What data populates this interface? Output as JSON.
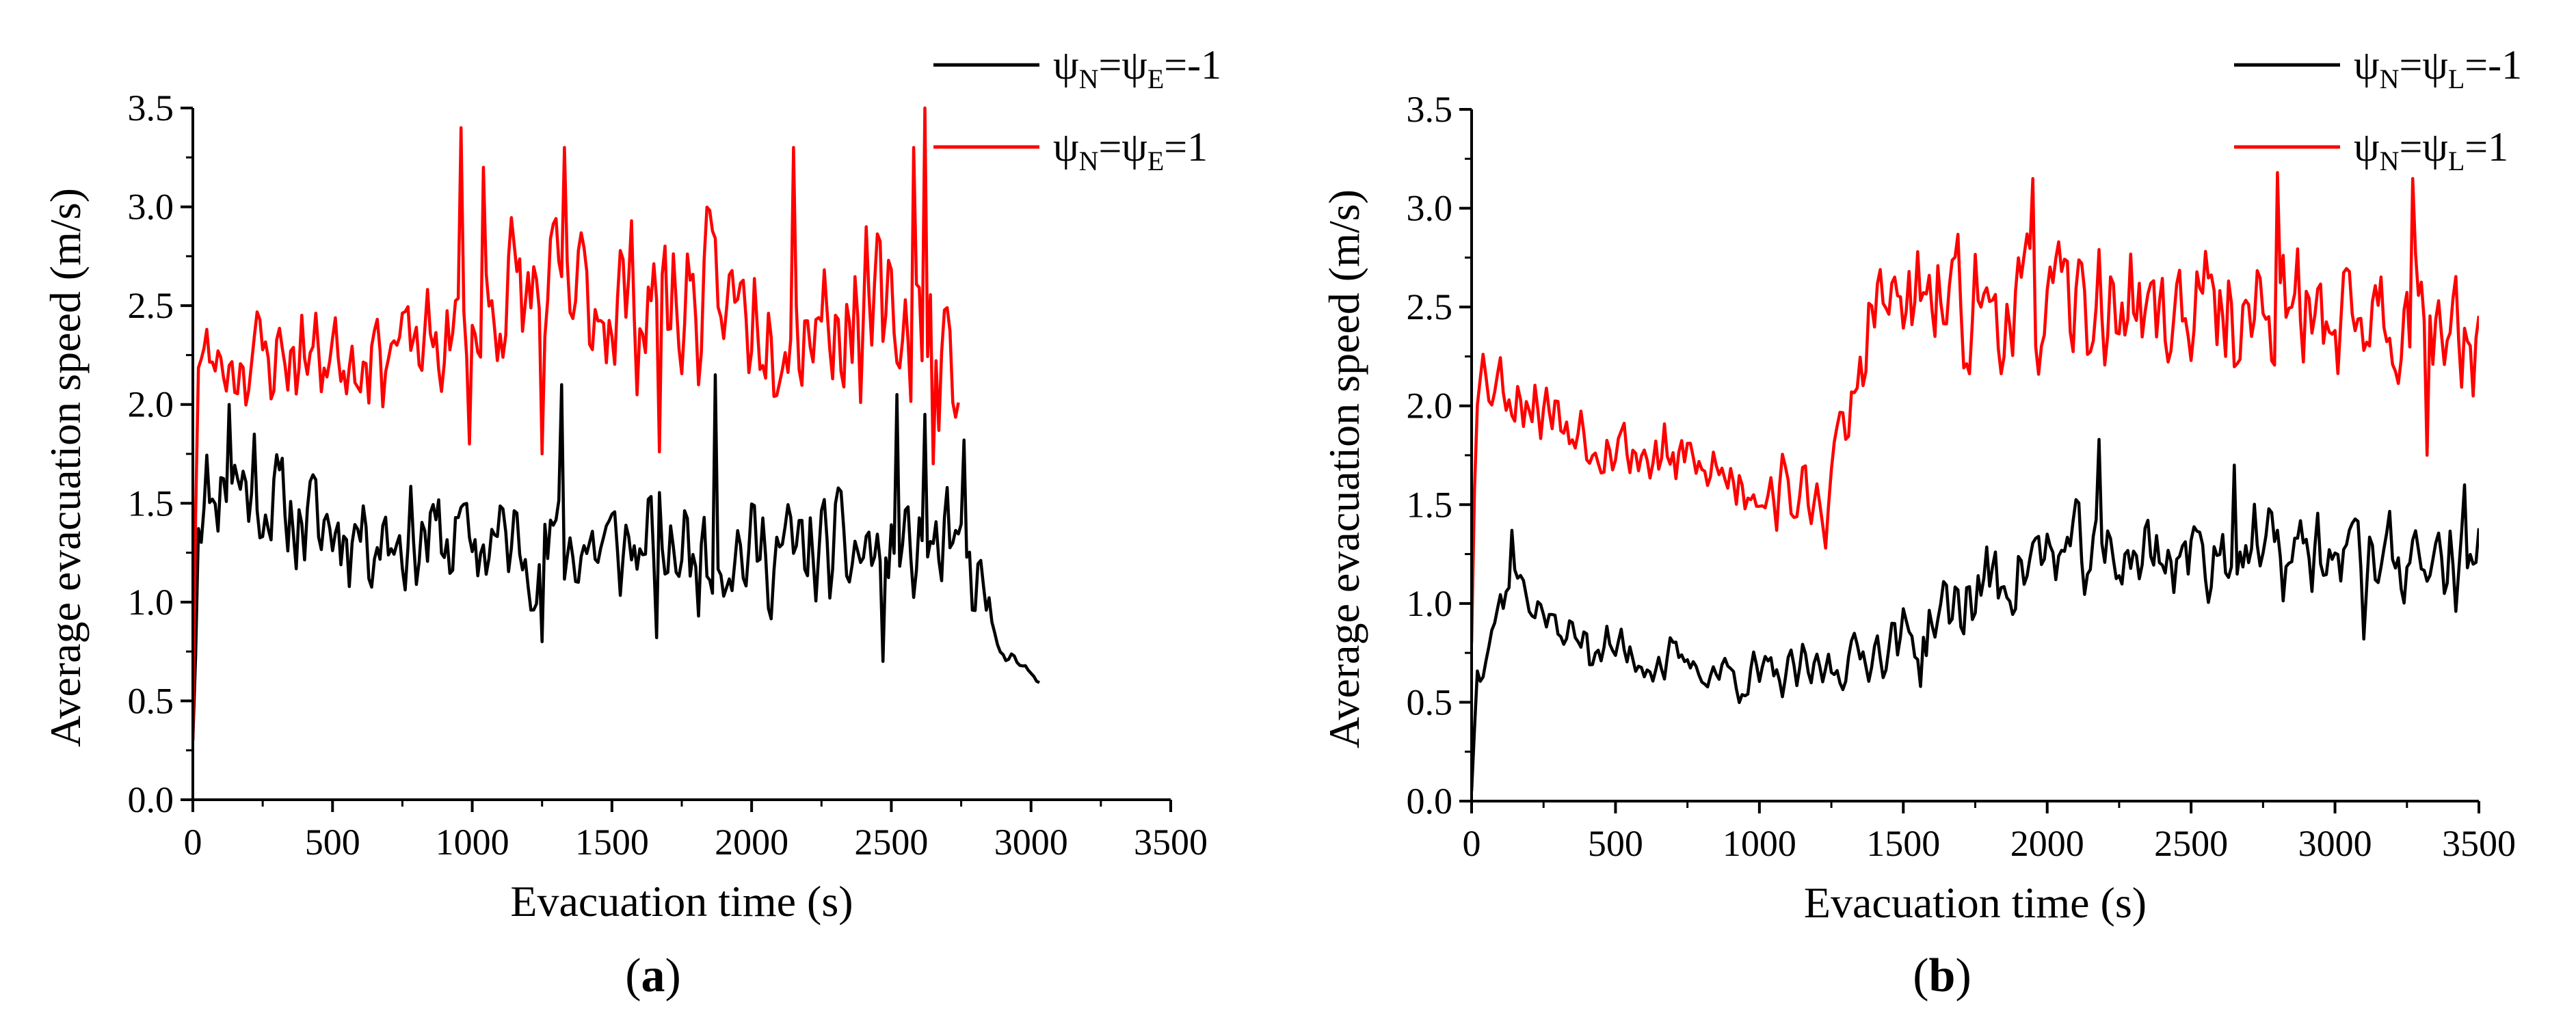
{
  "chart_data": [
    {
      "panel_label_prefix": "(",
      "panel_letter": "a",
      "panel_label_suffix": ")",
      "type": "line",
      "title": "",
      "xlabel": "Evacuation time (s)",
      "ylabel": "Average evacuation speed (m/s)",
      "xlim": [
        0,
        3500
      ],
      "ylim": [
        0.0,
        3.5
      ],
      "xticks": [
        "0",
        "500",
        "1000",
        "1500",
        "2000",
        "2500",
        "3000",
        "3500"
      ],
      "yticks": [
        "0.0",
        "0.5",
        "1.0",
        "1.5",
        "2.0",
        "2.5",
        "3.0",
        "3.5"
      ],
      "legend_position": "top-right, outside plot",
      "series": [
        {
          "name": "ψN=ψE=-1",
          "legend": {
            "psi": "ψ",
            "sub1": "N",
            "eq1": "=",
            "sub2": "E",
            "val": "=-1"
          },
          "color": "#000000",
          "seed": 11,
          "shape": [
            [
              0,
              0.3
            ],
            [
              20,
              1.5
            ],
            [
              130,
              1.65
            ],
            [
              400,
              1.4
            ],
            [
              1000,
              1.3
            ],
            [
              2000,
              1.25
            ],
            [
              2700,
              1.25
            ],
            [
              2850,
              1.0
            ],
            [
              2880,
              0.75
            ],
            [
              2950,
              0.68
            ],
            [
              3030,
              0.62
            ]
          ],
          "noise": [
            [
              0,
              0.22
            ],
            [
              2800,
              0.22
            ],
            [
              2880,
              0.03
            ],
            [
              3030,
              0.02
            ]
          ],
          "spikes": [
            [
              130,
              2.0
            ],
            [
              220,
              1.85
            ],
            [
              1320,
              2.1
            ],
            [
              1870,
              2.15
            ],
            [
              2520,
              2.05
            ],
            [
              2620,
              1.95
            ],
            [
              2760,
              1.82
            ],
            [
              2470,
              0.7
            ],
            [
              1250,
              0.8
            ],
            [
              1660,
              0.82
            ]
          ]
        },
        {
          "name": "ψN=ψE=1",
          "legend": {
            "psi": "ψ",
            "sub1": "N",
            "eq1": "=",
            "sub2": "E",
            "val": "=1"
          },
          "color": "#ff0000",
          "seed": 23,
          "shape": [
            [
              0,
              0.3
            ],
            [
              15,
              2.2
            ],
            [
              300,
              2.25
            ],
            [
              900,
              2.3
            ],
            [
              1100,
              2.55
            ],
            [
              2000,
              2.5
            ],
            [
              2600,
              2.4
            ],
            [
              2700,
              2.2
            ],
            [
              2740,
              2.1
            ]
          ],
          "noise": [
            [
              0,
              0.2
            ],
            [
              900,
              0.2
            ],
            [
              1000,
              0.32
            ],
            [
              2700,
              0.32
            ],
            [
              2740,
              0.1
            ]
          ],
          "spikes": [
            [
              960,
              3.4
            ],
            [
              1040,
              3.2
            ],
            [
              1330,
              3.3
            ],
            [
              2150,
              3.3
            ],
            [
              2620,
              3.5
            ],
            [
              2580,
              3.3
            ],
            [
              1670,
              1.76
            ],
            [
              2650,
              1.7
            ],
            [
              1250,
              1.75
            ],
            [
              990,
              1.8
            ]
          ]
        }
      ]
    },
    {
      "panel_label_prefix": "(",
      "panel_letter": "b",
      "panel_label_suffix": ")",
      "type": "line",
      "title": "",
      "xlabel": "Evacuation time (s)",
      "ylabel": "Average evacuation speed (m/s)",
      "xlim": [
        0,
        3500
      ],
      "ylim": [
        0.0,
        3.5
      ],
      "xticks": [
        "0",
        "500",
        "1000",
        "1500",
        "2000",
        "2500",
        "3000",
        "3500"
      ],
      "yticks": [
        "0.0",
        "0.5",
        "1.0",
        "1.5",
        "2.0",
        "2.5",
        "3.0",
        "3.5"
      ],
      "legend_position": "top-right, outside plot",
      "series": [
        {
          "name": "ψN=ψL=-1",
          "legend": {
            "psi": "ψ",
            "sub1": "N",
            "eq1": "=",
            "sub2": "L",
            "val": "=-1"
          },
          "color": "#000000",
          "seed": 37,
          "shape": [
            [
              0,
              0.05
            ],
            [
              20,
              0.7
            ],
            [
              140,
              1.15
            ],
            [
              300,
              0.85
            ],
            [
              600,
              0.72
            ],
            [
              1000,
              0.62
            ],
            [
              1200,
              0.65
            ],
            [
              1550,
              0.85
            ],
            [
              1800,
              1.1
            ],
            [
              2000,
              1.25
            ],
            [
              2500,
              1.25
            ],
            [
              3000,
              1.25
            ],
            [
              3500,
              1.2
            ]
          ],
          "noise": [
            [
              0,
              0.1
            ],
            [
              1400,
              0.1
            ],
            [
              1800,
              0.18
            ],
            [
              3500,
              0.18
            ]
          ],
          "spikes": [
            [
              140,
              1.37
            ],
            [
              2180,
              1.83
            ],
            [
              2650,
              1.7
            ],
            [
              3450,
              1.6
            ],
            [
              3100,
              0.82
            ],
            [
              1560,
              0.58
            ]
          ]
        },
        {
          "name": "ψN=ψL=1",
          "legend": {
            "psi": "ψ",
            "sub1": "N",
            "eq1": "=",
            "sub2": "L",
            "val": "=1"
          },
          "color": "#ff0000",
          "seed": 53,
          "shape": [
            [
              0,
              0.8
            ],
            [
              15,
              2.2
            ],
            [
              300,
              1.95
            ],
            [
              600,
              1.75
            ],
            [
              1000,
              1.6
            ],
            [
              1200,
              1.5
            ],
            [
              1300,
              1.85
            ],
            [
              1400,
              2.5
            ],
            [
              2000,
              2.5
            ],
            [
              3500,
              2.45
            ]
          ],
          "noise": [
            [
              0,
              0.15
            ],
            [
              1300,
              0.15
            ],
            [
              1400,
              0.25
            ],
            [
              3500,
              0.25
            ]
          ],
          "spikes": [
            [
              1950,
              3.15
            ],
            [
              2800,
              3.18
            ],
            [
              3270,
              3.15
            ],
            [
              1230,
              1.28
            ],
            [
              3320,
              1.75
            ],
            [
              3480,
              2.05
            ]
          ]
        }
      ]
    }
  ]
}
